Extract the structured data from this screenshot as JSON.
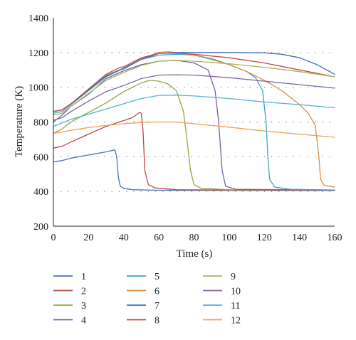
{
  "chart_data": {
    "type": "line",
    "xlabel": "Time (s)",
    "ylabel": "Temperature (K)",
    "xlim": [
      0,
      160
    ],
    "ylim": [
      200,
      1400
    ],
    "xticks": [
      0,
      20,
      40,
      60,
      80,
      100,
      120,
      140,
      160
    ],
    "yticks": [
      200,
      400,
      600,
      800,
      1000,
      1200,
      1400
    ],
    "dotted_gridlines_y": [
      400,
      600,
      800,
      1000,
      1200
    ],
    "legend_placement": "bottom",
    "series": [
      {
        "name": "1",
        "color": "#4a72b0",
        "points": [
          [
            0,
            570
          ],
          [
            5,
            578
          ],
          [
            10,
            592
          ],
          [
            20,
            610
          ],
          [
            30,
            628
          ],
          [
            35,
            640
          ],
          [
            36,
            600
          ],
          [
            37,
            480
          ],
          [
            38,
            432
          ],
          [
            40,
            418
          ],
          [
            45,
            410
          ],
          [
            60,
            407
          ],
          [
            100,
            406
          ],
          [
            160,
            405
          ]
        ]
      },
      {
        "name": "2",
        "color": "#b84a48",
        "points": [
          [
            0,
            650
          ],
          [
            5,
            660
          ],
          [
            10,
            685
          ],
          [
            20,
            730
          ],
          [
            30,
            775
          ],
          [
            40,
            808
          ],
          [
            45,
            825
          ],
          [
            49,
            855
          ],
          [
            50,
            850
          ],
          [
            51,
            750
          ],
          [
            52,
            520
          ],
          [
            54,
            440
          ],
          [
            58,
            420
          ],
          [
            70,
            410
          ],
          [
            100,
            408
          ],
          [
            160,
            406
          ]
        ]
      },
      {
        "name": "3",
        "color": "#8fa840",
        "points": [
          [
            0,
            735
          ],
          [
            5,
            760
          ],
          [
            10,
            800
          ],
          [
            20,
            855
          ],
          [
            30,
            910
          ],
          [
            40,
            975
          ],
          [
            50,
            1025
          ],
          [
            55,
            1040
          ],
          [
            60,
            1035
          ],
          [
            65,
            1020
          ],
          [
            70,
            980
          ],
          [
            74,
            860
          ],
          [
            76,
            700
          ],
          [
            78,
            520
          ],
          [
            80,
            440
          ],
          [
            84,
            418
          ],
          [
            100,
            410
          ],
          [
            160,
            408
          ]
        ]
      },
      {
        "name": "4",
        "color": "#7b5fa6",
        "points": [
          [
            0,
            800
          ],
          [
            5,
            840
          ],
          [
            10,
            890
          ],
          [
            20,
            960
          ],
          [
            30,
            1050
          ],
          [
            40,
            1095
          ],
          [
            50,
            1130
          ],
          [
            60,
            1150
          ],
          [
            70,
            1155
          ],
          [
            80,
            1140
          ],
          [
            88,
            1100
          ],
          [
            92,
            980
          ],
          [
            94,
            800
          ],
          [
            96,
            520
          ],
          [
            98,
            430
          ],
          [
            104,
            412
          ],
          [
            160,
            408
          ]
        ]
      },
      {
        "name": "5",
        "color": "#3ea2c2",
        "points": [
          [
            0,
            850
          ],
          [
            5,
            860
          ],
          [
            10,
            900
          ],
          [
            20,
            980
          ],
          [
            30,
            1060
          ],
          [
            38,
            1100
          ],
          [
            40,
            1105
          ],
          [
            50,
            1160
          ],
          [
            60,
            1185
          ],
          [
            70,
            1190
          ],
          [
            80,
            1185
          ],
          [
            90,
            1165
          ],
          [
            100,
            1130
          ],
          [
            110,
            1090
          ],
          [
            115,
            1055
          ],
          [
            119,
            980
          ],
          [
            121,
            800
          ],
          [
            122,
            600
          ],
          [
            123,
            470
          ],
          [
            126,
            425
          ],
          [
            135,
            412
          ],
          [
            160,
            408
          ]
        ]
      },
      {
        "name": "6",
        "color": "#e08a3c",
        "points": [
          [
            0,
            860
          ],
          [
            5,
            870
          ],
          [
            10,
            905
          ],
          [
            20,
            985
          ],
          [
            30,
            1070
          ],
          [
            40,
            1110
          ],
          [
            50,
            1165
          ],
          [
            60,
            1200
          ],
          [
            65,
            1205
          ],
          [
            70,
            1200
          ],
          [
            80,
            1185
          ],
          [
            90,
            1160
          ],
          [
            100,
            1130
          ],
          [
            110,
            1090
          ],
          [
            120,
            1040
          ],
          [
            130,
            980
          ],
          [
            140,
            900
          ],
          [
            145,
            850
          ],
          [
            149,
            780
          ],
          [
            151,
            600
          ],
          [
            152,
            470
          ],
          [
            154,
            435
          ],
          [
            160,
            425
          ]
        ]
      },
      {
        "name": "7",
        "color": "#3f6eb5",
        "points": [
          [
            0,
            860
          ],
          [
            5,
            870
          ],
          [
            10,
            905
          ],
          [
            20,
            985
          ],
          [
            30,
            1065
          ],
          [
            40,
            1110
          ],
          [
            50,
            1160
          ],
          [
            60,
            1195
          ],
          [
            70,
            1200
          ],
          [
            80,
            1200
          ],
          [
            100,
            1200
          ],
          [
            120,
            1198
          ],
          [
            130,
            1190
          ],
          [
            140,
            1170
          ],
          [
            150,
            1130
          ],
          [
            160,
            1075
          ]
        ]
      },
      {
        "name": "8",
        "color": "#c24a48",
        "points": [
          [
            0,
            860
          ],
          [
            5,
            870
          ],
          [
            10,
            905
          ],
          [
            20,
            990
          ],
          [
            30,
            1075
          ],
          [
            38,
            1115
          ],
          [
            40,
            1118
          ],
          [
            50,
            1170
          ],
          [
            60,
            1195
          ],
          [
            70,
            1197
          ],
          [
            80,
            1190
          ],
          [
            100,
            1170
          ],
          [
            120,
            1140
          ],
          [
            140,
            1100
          ],
          [
            160,
            1060
          ]
        ]
      },
      {
        "name": "9",
        "color": "#9fba5c",
        "points": [
          [
            0,
            840
          ],
          [
            5,
            850
          ],
          [
            10,
            890
          ],
          [
            20,
            965
          ],
          [
            30,
            1040
          ],
          [
            40,
            1085
          ],
          [
            50,
            1125
          ],
          [
            60,
            1150
          ],
          [
            70,
            1155
          ],
          [
            80,
            1150
          ],
          [
            100,
            1135
          ],
          [
            120,
            1115
          ],
          [
            140,
            1090
          ],
          [
            160,
            1060
          ]
        ]
      },
      {
        "name": "10",
        "color": "#8064a6",
        "points": [
          [
            0,
            810
          ],
          [
            5,
            825
          ],
          [
            10,
            860
          ],
          [
            20,
            920
          ],
          [
            30,
            975
          ],
          [
            40,
            1010
          ],
          [
            50,
            1050
          ],
          [
            60,
            1070
          ],
          [
            70,
            1072
          ],
          [
            80,
            1070
          ],
          [
            100,
            1055
          ],
          [
            120,
            1035
          ],
          [
            140,
            1015
          ],
          [
            160,
            995
          ]
        ]
      },
      {
        "name": "11",
        "color": "#4fb3d0",
        "points": [
          [
            0,
            775
          ],
          [
            5,
            795
          ],
          [
            10,
            815
          ],
          [
            20,
            845
          ],
          [
            30,
            875
          ],
          [
            40,
            905
          ],
          [
            50,
            935
          ],
          [
            60,
            953
          ],
          [
            70,
            955
          ],
          [
            80,
            950
          ],
          [
            100,
            935
          ],
          [
            120,
            915
          ],
          [
            140,
            900
          ],
          [
            160,
            882
          ]
        ]
      },
      {
        "name": "12",
        "color": "#f0a050",
        "points": [
          [
            0,
            735
          ],
          [
            5,
            742
          ],
          [
            10,
            752
          ],
          [
            20,
            768
          ],
          [
            30,
            780
          ],
          [
            40,
            790
          ],
          [
            50,
            797
          ],
          [
            60,
            800
          ],
          [
            70,
            800
          ],
          [
            80,
            790
          ],
          [
            100,
            770
          ],
          [
            120,
            748
          ],
          [
            140,
            730
          ],
          [
            160,
            712
          ]
        ]
      }
    ]
  }
}
